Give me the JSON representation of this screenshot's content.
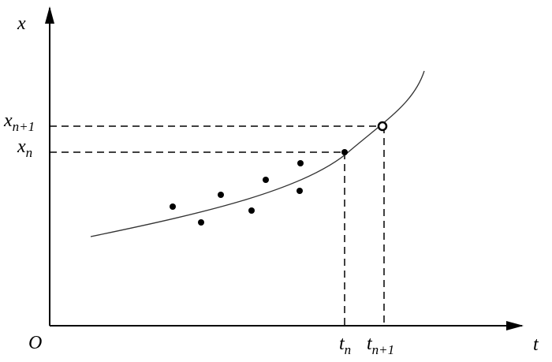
{
  "axes": {
    "y_label": "x",
    "x_label": "t",
    "origin": "O"
  },
  "labels": {
    "x_n1": {
      "base": "x",
      "sub": "n+1"
    },
    "x_n": {
      "base": "x",
      "sub": "n"
    },
    "t_n": {
      "base": "t",
      "sub": "n"
    },
    "t_n1": {
      "base": "t",
      "sub": "n+1"
    }
  }
}
